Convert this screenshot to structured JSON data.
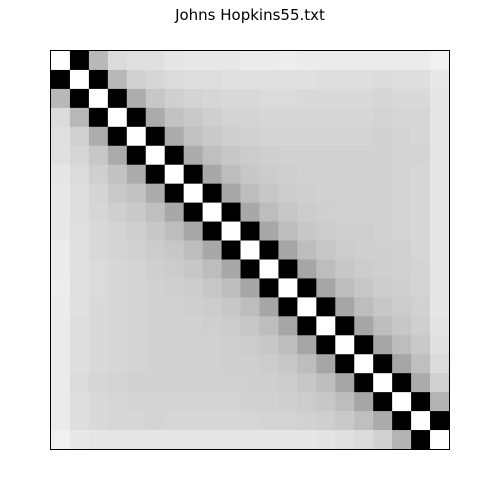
{
  "title": "Johns Hopkins55.txt",
  "chart_data": {
    "type": "heatmap",
    "title": "Johns Hopkins55.txt",
    "xlabel": "",
    "ylabel": "",
    "rows": 21,
    "cols": 21,
    "value_range": [
      0,
      1
    ],
    "colormap": "grayscale (0 = white, 1 = black)",
    "axes_ticks": "none",
    "grid": false,
    "values": [
      [
        0.0,
        1.0,
        0.28,
        0.14,
        0.12,
        0.12,
        0.1,
        0.09,
        0.09,
        0.09,
        0.08,
        0.08,
        0.07,
        0.08,
        0.08,
        0.08,
        0.08,
        0.08,
        0.08,
        0.08,
        0.06
      ],
      [
        1.0,
        0.0,
        1.0,
        0.28,
        0.18,
        0.16,
        0.14,
        0.13,
        0.13,
        0.12,
        0.12,
        0.12,
        0.12,
        0.12,
        0.13,
        0.13,
        0.13,
        0.14,
        0.13,
        0.13,
        0.09
      ],
      [
        0.28,
        1.0,
        0.0,
        1.0,
        0.32,
        0.22,
        0.19,
        0.17,
        0.16,
        0.15,
        0.15,
        0.14,
        0.14,
        0.15,
        0.15,
        0.15,
        0.15,
        0.16,
        0.15,
        0.15,
        0.1
      ],
      [
        0.14,
        0.28,
        1.0,
        0.0,
        1.0,
        0.33,
        0.24,
        0.21,
        0.19,
        0.17,
        0.17,
        0.16,
        0.16,
        0.16,
        0.16,
        0.16,
        0.16,
        0.17,
        0.16,
        0.16,
        0.1
      ],
      [
        0.12,
        0.18,
        0.32,
        1.0,
        0.0,
        1.0,
        0.33,
        0.24,
        0.21,
        0.19,
        0.18,
        0.17,
        0.17,
        0.17,
        0.17,
        0.17,
        0.17,
        0.18,
        0.17,
        0.16,
        0.1
      ],
      [
        0.12,
        0.16,
        0.22,
        0.33,
        1.0,
        0.0,
        1.0,
        0.33,
        0.25,
        0.22,
        0.2,
        0.19,
        0.18,
        0.18,
        0.18,
        0.18,
        0.18,
        0.18,
        0.17,
        0.17,
        0.1
      ],
      [
        0.1,
        0.14,
        0.19,
        0.24,
        0.33,
        1.0,
        0.0,
        1.0,
        0.34,
        0.26,
        0.22,
        0.2,
        0.19,
        0.18,
        0.18,
        0.18,
        0.18,
        0.18,
        0.17,
        0.16,
        0.1
      ],
      [
        0.09,
        0.13,
        0.17,
        0.21,
        0.24,
        0.33,
        1.0,
        0.0,
        1.0,
        0.34,
        0.26,
        0.22,
        0.2,
        0.19,
        0.18,
        0.18,
        0.18,
        0.18,
        0.17,
        0.16,
        0.1
      ],
      [
        0.09,
        0.13,
        0.16,
        0.19,
        0.21,
        0.25,
        0.34,
        1.0,
        0.0,
        1.0,
        0.34,
        0.26,
        0.22,
        0.2,
        0.19,
        0.18,
        0.18,
        0.18,
        0.17,
        0.16,
        0.1
      ],
      [
        0.09,
        0.12,
        0.15,
        0.17,
        0.19,
        0.22,
        0.26,
        0.34,
        1.0,
        0.0,
        1.0,
        0.34,
        0.26,
        0.22,
        0.2,
        0.19,
        0.19,
        0.18,
        0.17,
        0.16,
        0.1
      ],
      [
        0.08,
        0.12,
        0.15,
        0.17,
        0.18,
        0.2,
        0.22,
        0.26,
        0.34,
        1.0,
        0.0,
        1.0,
        0.35,
        0.26,
        0.22,
        0.2,
        0.19,
        0.19,
        0.18,
        0.16,
        0.1
      ],
      [
        0.08,
        0.12,
        0.14,
        0.16,
        0.17,
        0.19,
        0.2,
        0.22,
        0.26,
        0.34,
        1.0,
        0.0,
        1.0,
        0.35,
        0.26,
        0.22,
        0.2,
        0.19,
        0.18,
        0.17,
        0.1
      ],
      [
        0.07,
        0.12,
        0.14,
        0.16,
        0.17,
        0.18,
        0.19,
        0.2,
        0.22,
        0.26,
        0.35,
        1.0,
        0.0,
        1.0,
        0.35,
        0.26,
        0.22,
        0.2,
        0.19,
        0.17,
        0.1
      ],
      [
        0.08,
        0.12,
        0.15,
        0.16,
        0.17,
        0.18,
        0.18,
        0.19,
        0.2,
        0.22,
        0.26,
        0.35,
        1.0,
        0.0,
        1.0,
        0.35,
        0.26,
        0.22,
        0.2,
        0.18,
        0.1
      ],
      [
        0.08,
        0.13,
        0.15,
        0.16,
        0.17,
        0.18,
        0.18,
        0.18,
        0.19,
        0.2,
        0.22,
        0.26,
        0.35,
        1.0,
        0.0,
        1.0,
        0.35,
        0.26,
        0.22,
        0.19,
        0.11
      ],
      [
        0.08,
        0.13,
        0.15,
        0.16,
        0.17,
        0.18,
        0.18,
        0.18,
        0.18,
        0.19,
        0.2,
        0.22,
        0.26,
        0.35,
        1.0,
        0.0,
        1.0,
        0.35,
        0.26,
        0.21,
        0.12
      ],
      [
        0.08,
        0.13,
        0.15,
        0.16,
        0.17,
        0.18,
        0.18,
        0.18,
        0.18,
        0.19,
        0.19,
        0.2,
        0.22,
        0.26,
        0.35,
        1.0,
        0.0,
        1.0,
        0.35,
        0.25,
        0.14
      ],
      [
        0.08,
        0.14,
        0.16,
        0.17,
        0.18,
        0.18,
        0.18,
        0.18,
        0.18,
        0.18,
        0.19,
        0.19,
        0.2,
        0.22,
        0.26,
        0.35,
        1.0,
        0.0,
        1.0,
        0.33,
        0.18
      ],
      [
        0.08,
        0.13,
        0.15,
        0.16,
        0.17,
        0.17,
        0.17,
        0.17,
        0.17,
        0.17,
        0.18,
        0.18,
        0.19,
        0.2,
        0.22,
        0.26,
        0.35,
        1.0,
        0.0,
        1.0,
        0.3
      ],
      [
        0.08,
        0.13,
        0.15,
        0.16,
        0.16,
        0.17,
        0.16,
        0.16,
        0.16,
        0.16,
        0.16,
        0.17,
        0.17,
        0.18,
        0.19,
        0.21,
        0.25,
        0.33,
        1.0,
        0.0,
        1.0
      ],
      [
        0.06,
        0.09,
        0.1,
        0.1,
        0.1,
        0.1,
        0.1,
        0.1,
        0.1,
        0.1,
        0.1,
        0.1,
        0.1,
        0.1,
        0.11,
        0.12,
        0.14,
        0.18,
        0.3,
        1.0,
        0.0
      ]
    ]
  }
}
